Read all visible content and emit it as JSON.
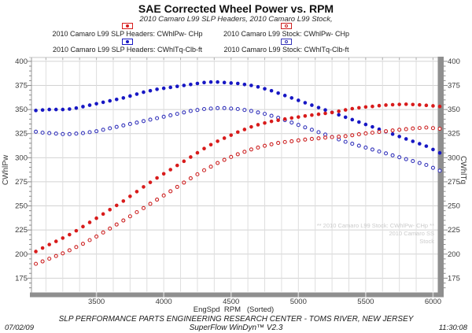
{
  "title": "SAE Corrected Wheel Power vs. RPM",
  "subtitle": "2010 Camaro L99 SLP Headers, 2010 Camaro L99 Stock,",
  "legend": {
    "items": [
      {
        "label": "2010 Camaro L99 SLP Headers: CWhlPw- CHp",
        "marker": "filled-dot",
        "color": "#d81b1b"
      },
      {
        "label": "2010 Camaro L99 Stock: CWhlPw- CHp",
        "marker": "open-dot",
        "color": "#cc2222"
      },
      {
        "label": "2010 Camaro L99 SLP Headers: CWhlTq-Clb-ft",
        "marker": "filled-dot",
        "color": "#1717c4"
      },
      {
        "label": "2010 Camaro L99 Stock: CWhlTq-Clb-ft",
        "marker": "open-dot",
        "color": "#3535bb"
      }
    ]
  },
  "axes": {
    "left_label": "CWhlPw",
    "right_label": "CWhlTq",
    "x_label": "EngSpd  RPM   (Sorted)"
  },
  "watermark": [
    "** 2010 Camaro L99 Stock: CWhlPw- CHp **",
    "2010 Camaro SS",
    "Stock"
  ],
  "footer": {
    "center_line1": "SLP PERFORMANCE PARTS ENGINEERING RESEARCH CENTER - TOMS RIVER, NEW JERSEY",
    "center_line2": "SuperFlow WinDyn™ V2.3",
    "date": "07/02/09",
    "time": "11:30:08"
  },
  "chart_data": {
    "type": "scatter",
    "title": "SAE Corrected Wheel Power vs. RPM",
    "subtitle": "2010 Camaro L99 SLP Headers, 2010 Camaro L99 Stock,",
    "xlabel": "EngSpd  RPM   (Sorted)",
    "ylabel_left": "CWhlPw",
    "ylabel_right": "CWhlTq",
    "xlim": [
      3000,
      6050
    ],
    "ylim": [
      161,
      404
    ],
    "x_ticks": [
      3500,
      4000,
      4500,
      5000,
      5500,
      6000
    ],
    "y_ticks": [
      175,
      200,
      225,
      250,
      275,
      300,
      325,
      350,
      375,
      400
    ],
    "x_grid_step": 125,
    "y_grid_step": 25,
    "grid": true,
    "legend_position": "top",
    "x": [
      3050,
      3100,
      3150,
      3200,
      3250,
      3300,
      3350,
      3400,
      3450,
      3500,
      3550,
      3600,
      3650,
      3700,
      3750,
      3800,
      3850,
      3900,
      3950,
      4000,
      4050,
      4100,
      4150,
      4200,
      4250,
      4300,
      4350,
      4400,
      4450,
      4500,
      4550,
      4600,
      4650,
      4700,
      4750,
      4800,
      4850,
      4900,
      4950,
      5000,
      5050,
      5100,
      5150,
      5200,
      5250,
      5300,
      5350,
      5400,
      5450,
      5500,
      5550,
      5600,
      5650,
      5700,
      5750,
      5800,
      5850,
      5900,
      5950,
      6000,
      6050
    ],
    "series": [
      {
        "name": "2010 Camaro L99 SLP Headers: CWhlPw- CHp",
        "slug": "slp-power",
        "marker": "filled",
        "color": "#d81b1b",
        "values": [
          202.7,
          206.3,
          209.9,
          213.2,
          216.6,
          220.2,
          224.2,
          228.5,
          232.9,
          237.2,
          241.6,
          246.1,
          250.5,
          255.0,
          259.9,
          264.8,
          269.7,
          274.4,
          279.0,
          283.3,
          287.6,
          292.0,
          296.3,
          300.7,
          305.1,
          309.5,
          313.5,
          317.1,
          320.3,
          323.4,
          326.6,
          329.3,
          332.0,
          334.2,
          336.0,
          337.7,
          338.9,
          340.1,
          341.2,
          342.2,
          343.3,
          344.2,
          345.1,
          346.0,
          346.9,
          348.2,
          349.6,
          350.9,
          351.8,
          352.6,
          353.2,
          354.0,
          354.6,
          355.0,
          355.3,
          355.5,
          355.2,
          354.8,
          354.3,
          353.8,
          353.2
        ]
      },
      {
        "name": "2010 Camaro L99 Stock: CWhlPw- CHp",
        "slug": "stock-power",
        "marker": "open",
        "color": "#cc2222",
        "values": [
          189.9,
          192.4,
          195.2,
          198.0,
          200.8,
          203.9,
          207.3,
          210.7,
          214.5,
          218.2,
          222.4,
          226.5,
          230.7,
          234.9,
          239.2,
          243.5,
          247.7,
          252.1,
          256.5,
          260.8,
          265.2,
          269.7,
          274.2,
          278.7,
          282.8,
          287.0,
          290.7,
          294.5,
          297.8,
          300.8,
          303.6,
          306.1,
          308.6,
          310.5,
          312.4,
          313.9,
          315.3,
          316.3,
          317.1,
          318.0,
          318.8,
          319.5,
          320.1,
          320.8,
          321.4,
          321.9,
          322.4,
          323.3,
          324.3,
          325.2,
          326.0,
          326.8,
          327.5,
          328.3,
          329.0,
          329.6,
          330.3,
          330.8,
          331.3,
          330.7,
          330.0
        ]
      },
      {
        "name": "2010 Camaro L99 SLP Headers: CWhlTq-Clb-ft",
        "slug": "slp-torque",
        "marker": "filled",
        "color": "#1717c4",
        "values": [
          349.0,
          349.5,
          350.0,
          350.0,
          350.0,
          350.5,
          351.5,
          353.0,
          354.5,
          356.0,
          357.5,
          359.0,
          360.5,
          362.0,
          364.0,
          366.0,
          368.0,
          369.5,
          371.0,
          372.0,
          373.0,
          374.0,
          375.0,
          376.0,
          377.0,
          378.0,
          378.5,
          378.5,
          378.0,
          377.5,
          377.0,
          376.0,
          375.0,
          373.5,
          371.5,
          369.5,
          367.0,
          364.5,
          362.0,
          359.5,
          357.0,
          354.5,
          352.0,
          349.5,
          347.0,
          344.5,
          342.0,
          339.5,
          337.0,
          334.5,
          332.0,
          329.5,
          327.0,
          324.5,
          322.0,
          319.5,
          317.0,
          314.5,
          312.0,
          308.5,
          305.0
        ]
      },
      {
        "name": "2010 Camaro L99 Stock: CWhlTq-Clb-ft",
        "slug": "stock-torque",
        "marker": "open",
        "color": "#3535bb",
        "values": [
          327.0,
          326.0,
          325.5,
          325.0,
          324.5,
          324.5,
          325.0,
          325.5,
          326.5,
          327.5,
          329.0,
          330.5,
          332.0,
          333.5,
          335.0,
          336.5,
          338.0,
          339.5,
          341.0,
          342.5,
          344.0,
          345.5,
          347.0,
          348.5,
          349.5,
          350.5,
          351.0,
          351.5,
          351.5,
          351.0,
          350.5,
          349.5,
          348.5,
          347.0,
          345.5,
          343.5,
          341.5,
          339.0,
          336.5,
          334.0,
          331.5,
          329.0,
          326.5,
          324.0,
          321.5,
          319.0,
          316.5,
          314.5,
          312.5,
          310.5,
          308.5,
          306.5,
          304.5,
          302.5,
          300.5,
          298.5,
          296.5,
          294.5,
          292.5,
          289.5,
          286.5
        ]
      }
    ]
  }
}
